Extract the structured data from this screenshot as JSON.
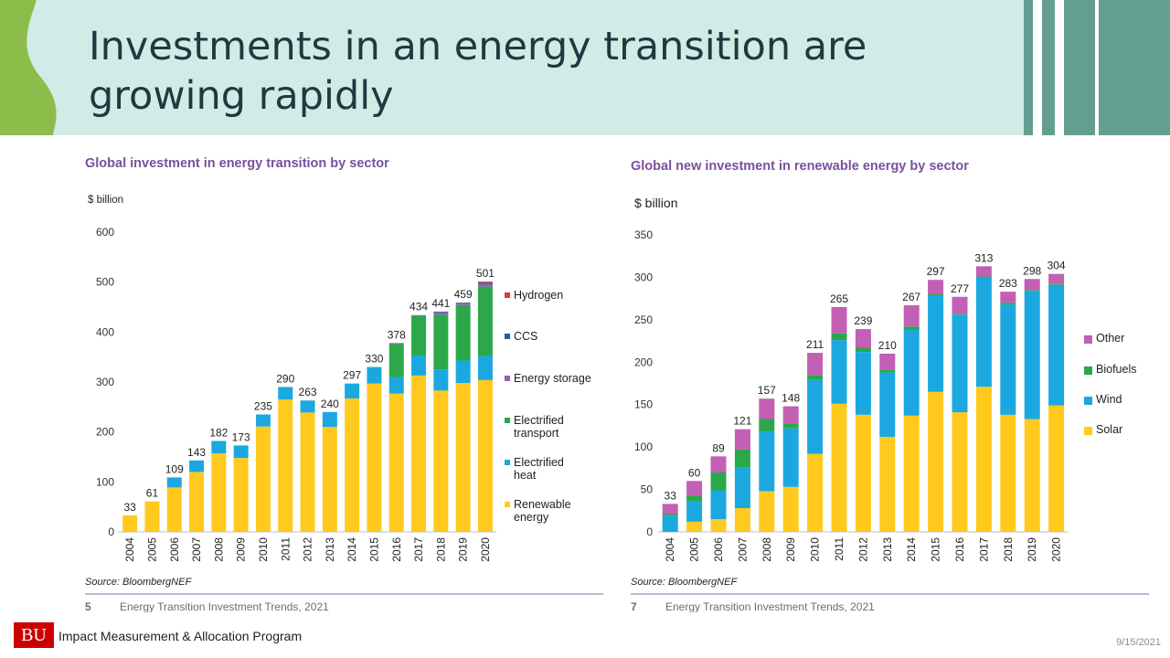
{
  "slide": {
    "title": "Investments in an energy transition are growing rapidly",
    "org": "Impact Measurement & Allocation Program",
    "logo": "BU",
    "date": "9/15/2021"
  },
  "colors": {
    "header_bg": "#d3ebe7",
    "accent_green": "#8cbd4a",
    "stripe": "#649e91",
    "title_text": "#1e3a40",
    "chart_title": "#7a4fa0"
  },
  "chart_data": [
    {
      "type": "bar",
      "stacked": true,
      "title": "Global investment in energy transition by sector",
      "unit_label": "$ billion",
      "ylim": [
        0,
        600
      ],
      "yticks": [
        0,
        100,
        200,
        300,
        400,
        500,
        600
      ],
      "grid": false,
      "legend_position": "right",
      "categories": [
        "2004",
        "2005",
        "2006",
        "2007",
        "2008",
        "2009",
        "2010",
        "2011",
        "2012",
        "2013",
        "2014",
        "2015",
        "2016",
        "2017",
        "2018",
        "2019",
        "2020"
      ],
      "totals": [
        33,
        61,
        109,
        143,
        182,
        173,
        235,
        290,
        263,
        240,
        297,
        330,
        378,
        434,
        441,
        459,
        501
      ],
      "series": [
        {
          "name": "Renewable energy",
          "color": "#ffc91e",
          "values": [
            33,
            61,
            89,
            120,
            157,
            148,
            211,
            265,
            239,
            210,
            267,
            297,
            277,
            313,
            283,
            298,
            304
          ]
        },
        {
          "name": "Electrified heat",
          "color": "#1ba8e0",
          "values": [
            0,
            0,
            20,
            23,
            25,
            25,
            24,
            25,
            24,
            30,
            30,
            33,
            33,
            40,
            42,
            45,
            48
          ]
        },
        {
          "name": "Electrified transport",
          "color": "#2aa84a",
          "values": [
            0,
            0,
            0,
            0,
            0,
            0,
            0,
            0,
            0,
            0,
            0,
            0,
            66,
            79,
            110,
            111,
            139
          ]
        },
        {
          "name": "Energy storage",
          "color": "#8f62b5",
          "values": [
            0,
            0,
            0,
            0,
            0,
            0,
            0,
            0,
            0,
            0,
            0,
            0,
            2,
            2,
            5,
            4,
            5
          ]
        },
        {
          "name": "CCS",
          "color": "#1f5fa8",
          "values": [
            0,
            0,
            0,
            0,
            0,
            0,
            0,
            0,
            0,
            0,
            0,
            0,
            0,
            0,
            1,
            1,
            3
          ]
        },
        {
          "name": "Hydrogen",
          "color": "#e03c31",
          "values": [
            0,
            0,
            0,
            0,
            0,
            0,
            0,
            0,
            0,
            0,
            0,
            0,
            0,
            0,
            0,
            0,
            2
          ]
        }
      ],
      "legend_order": [
        "Hydrogen",
        "CCS",
        "Energy storage",
        "Electrified transport",
        "Electrified heat",
        "Renewable energy"
      ],
      "source": "Source: BloombergNEF",
      "footer_num": "5",
      "footer_text": "Energy Transition Investment Trends, 2021"
    },
    {
      "type": "bar",
      "stacked": true,
      "title": "Global new investment in renewable energy by sector",
      "unit_label": "$ billion",
      "ylim": [
        0,
        350
      ],
      "yticks": [
        0,
        50,
        100,
        150,
        200,
        250,
        300,
        350
      ],
      "grid": false,
      "legend_position": "right",
      "categories": [
        "2004",
        "2005",
        "2006",
        "2007",
        "2008",
        "2009",
        "2010",
        "2011",
        "2012",
        "2013",
        "2014",
        "2015",
        "2016",
        "2017",
        "2018",
        "2019",
        "2020"
      ],
      "totals": [
        33,
        60,
        89,
        121,
        157,
        148,
        211,
        265,
        239,
        210,
        267,
        297,
        277,
        313,
        283,
        298,
        304
      ],
      "series": [
        {
          "name": "Solar",
          "color": "#ffc91e",
          "values": [
            0,
            12,
            15,
            28,
            48,
            53,
            92,
            151,
            138,
            112,
            137,
            165,
            141,
            171,
            138,
            133,
            149
          ]
        },
        {
          "name": "Wind",
          "color": "#1ba8e0",
          "values": [
            19,
            24,
            34,
            48,
            70,
            69,
            87,
            75,
            74,
            76,
            101,
            113,
            115,
            129,
            130,
            151,
            142
          ]
        },
        {
          "name": "Biofuels",
          "color": "#2aa84a",
          "values": [
            2,
            7,
            21,
            21,
            15,
            6,
            6,
            8,
            5,
            3,
            4,
            2,
            1,
            1,
            2,
            1,
            1
          ]
        },
        {
          "name": "Other",
          "color": "#c35fb5",
          "values": [
            12,
            17,
            19,
            24,
            24,
            20,
            26,
            31,
            22,
            19,
            25,
            17,
            20,
            12,
            13,
            13,
            12
          ]
        }
      ],
      "legend_order": [
        "Other",
        "Biofuels",
        "Wind",
        "Solar"
      ],
      "source": "Source: BloombergNEF",
      "footer_num": "7",
      "footer_text": "Energy Transition Investment Trends, 2021"
    }
  ]
}
